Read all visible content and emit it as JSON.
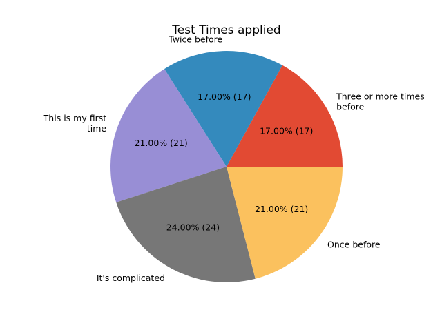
{
  "chart_data": {
    "type": "pie",
    "title": "Test Times applied",
    "slices": [
      {
        "label": "Three or more times before",
        "value": 17,
        "percent_label": "17.00%  (17)",
        "color": "#E24A33"
      },
      {
        "label": "Twice before",
        "value": 17,
        "percent_label": "17.00%  (17)",
        "color": "#348ABD"
      },
      {
        "label": "This is my first time",
        "value": 21,
        "percent_label": "21.00%  (21)",
        "color": "#988ED5"
      },
      {
        "label": "It's complicated",
        "value": 24,
        "percent_label": "24.00%  (24)",
        "color": "#777777"
      },
      {
        "label": "Once before",
        "value": 21,
        "percent_label": "21.00%  (21)",
        "color": "#FBC15E"
      }
    ]
  }
}
